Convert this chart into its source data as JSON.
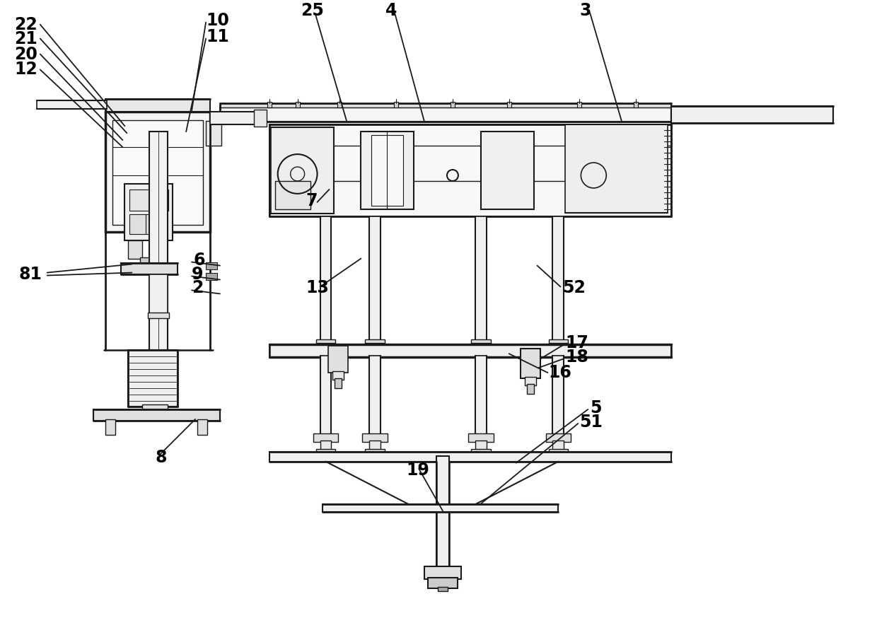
{
  "bg": "#ffffff",
  "lc": "#1a1a1a",
  "tc": "#000000",
  "fw": 12.4,
  "fh": 8.74,
  "dpi": 100
}
